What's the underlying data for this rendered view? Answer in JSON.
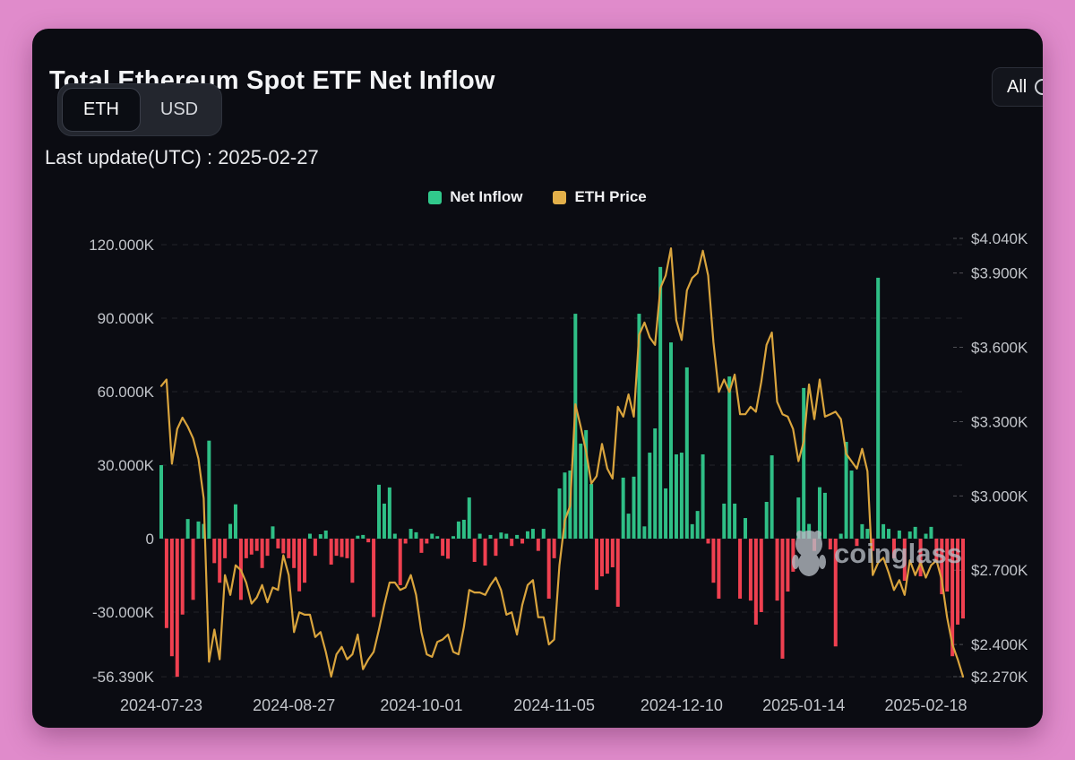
{
  "page": {
    "background": "#e08bcb",
    "card_background": "#0b0c12"
  },
  "header": {
    "title": "Total Ethereum Spot ETF Net Inflow",
    "toggle": {
      "options": [
        "ETH",
        "USD"
      ],
      "selected": "ETH"
    },
    "last_update": "Last update(UTC) : 2025-02-27",
    "range_button": "All"
  },
  "legend": [
    {
      "label": "Net Inflow",
      "color": "#31c98c"
    },
    {
      "label": "ETH Price",
      "color": "#e3b04a"
    }
  ],
  "watermark": "coinglass",
  "chart_data": {
    "type": "bar+line",
    "title": "Total Ethereum Spot ETF Net Inflow",
    "legend_position": "top-center",
    "grid": "dashed-horizontal",
    "colors": {
      "bar_positive": "#2fbf86",
      "bar_negative": "#ef4050",
      "line": "#d9a43d"
    },
    "left_axis": {
      "series": "Net Inflow (K ETH)",
      "ticks": [
        {
          "label": "120.000K",
          "value": 120
        },
        {
          "label": "90.000K",
          "value": 90
        },
        {
          "label": "60.000K",
          "value": 60
        },
        {
          "label": "30.000K",
          "value": 30
        },
        {
          "label": "0",
          "value": 0
        },
        {
          "label": "-30.000K",
          "value": -30
        },
        {
          "label": "-56.390K",
          "value": -56.39
        }
      ],
      "range": [
        -56.39,
        120
      ]
    },
    "right_axis": {
      "series": "ETH Price (USD)",
      "ticks": [
        {
          "label": "$4.040K",
          "value": 4040
        },
        {
          "label": "$3.900K",
          "value": 3900
        },
        {
          "label": "$3.600K",
          "value": 3600
        },
        {
          "label": "$3.300K",
          "value": 3300
        },
        {
          "label": "$3.000K",
          "value": 3000
        },
        {
          "label": "$2.700K",
          "value": 2700
        },
        {
          "label": "$2.400K",
          "value": 2400
        },
        {
          "label": "$2.270K",
          "value": 2270
        }
      ],
      "range": [
        2270,
        4040
      ]
    },
    "x_ticks": [
      {
        "label": "2024-07-23",
        "index": 0
      },
      {
        "label": "2024-08-27",
        "index": 25
      },
      {
        "label": "2024-10-01",
        "index": 49
      },
      {
        "label": "2024-11-05",
        "index": 74
      },
      {
        "label": "2024-12-10",
        "index": 98
      },
      {
        "label": "2025-01-14",
        "index": 121
      },
      {
        "label": "2025-02-18",
        "index": 144
      }
    ],
    "columns": [
      "date",
      "net_inflow_k_eth",
      "eth_price_usd"
    ],
    "bars": [
      [
        "2024-07-23",
        30.0,
        3444
      ],
      [
        "2024-07-24",
        -36.5,
        3470
      ],
      [
        "2024-07-25",
        -48.0,
        3130
      ],
      [
        "2024-07-26",
        -56.39,
        3270
      ],
      [
        "2024-07-29",
        -31.0,
        3316
      ],
      [
        "2024-07-30",
        8.0,
        3280
      ],
      [
        "2024-07-31",
        -25.0,
        3232
      ],
      [
        "2024-08-01",
        7.0,
        3150
      ],
      [
        "2024-08-02",
        6.0,
        2990
      ],
      [
        "2024-08-05",
        40.0,
        2330
      ],
      [
        "2024-08-06",
        -10.0,
        2460
      ],
      [
        "2024-08-07",
        -18.0,
        2340
      ],
      [
        "2024-08-08",
        -8.0,
        2680
      ],
      [
        "2024-08-09",
        6.0,
        2600
      ],
      [
        "2024-08-12",
        14.0,
        2720
      ],
      [
        "2024-08-13",
        -25.0,
        2700
      ],
      [
        "2024-08-14",
        -8.0,
        2650
      ],
      [
        "2024-08-15",
        -6.5,
        2565
      ],
      [
        "2024-08-16",
        -5.0,
        2590
      ],
      [
        "2024-08-19",
        -12.0,
        2640
      ],
      [
        "2024-08-20",
        -7.0,
        2570
      ],
      [
        "2024-08-21",
        5.0,
        2630
      ],
      [
        "2024-08-22",
        -4.0,
        2620
      ],
      [
        "2024-08-23",
        -6.0,
        2760
      ],
      [
        "2024-08-26",
        -8.0,
        2680
      ],
      [
        "2024-08-27",
        -12.0,
        2450
      ],
      [
        "2024-08-28",
        -21.5,
        2530
      ],
      [
        "2024-08-29",
        -18.0,
        2520
      ],
      [
        "2024-08-30",
        2.0,
        2520
      ],
      [
        "2024-09-03",
        -7.0,
        2430
      ],
      [
        "2024-09-04",
        1.8,
        2450
      ],
      [
        "2024-09-05",
        3.3,
        2370
      ],
      [
        "2024-09-06",
        -10.6,
        2270
      ],
      [
        "2024-09-09",
        -7.0,
        2360
      ],
      [
        "2024-09-10",
        -7.5,
        2390
      ],
      [
        "2024-09-11",
        -8.0,
        2340
      ],
      [
        "2024-09-12",
        -18.0,
        2360
      ],
      [
        "2024-09-13",
        1.2,
        2440
      ],
      [
        "2024-09-16",
        1.5,
        2300
      ],
      [
        "2024-09-17",
        -1.5,
        2340
      ],
      [
        "2024-09-18",
        -32.0,
        2370
      ],
      [
        "2024-09-19",
        22.0,
        2460
      ],
      [
        "2024-09-20",
        14.3,
        2560
      ],
      [
        "2024-09-23",
        20.9,
        2650
      ],
      [
        "2024-09-24",
        2.0,
        2650
      ],
      [
        "2024-09-25",
        -19.0,
        2620
      ],
      [
        "2024-09-26",
        -2.0,
        2630
      ],
      [
        "2024-09-27",
        4.0,
        2680
      ],
      [
        "2024-09-30",
        2.6,
        2600
      ],
      [
        "2024-10-01",
        -5.8,
        2450
      ],
      [
        "2024-10-02",
        -2.0,
        2360
      ],
      [
        "2024-10-03",
        2.0,
        2350
      ],
      [
        "2024-10-04",
        1.0,
        2410
      ],
      [
        "2024-10-07",
        -7.0,
        2420
      ],
      [
        "2024-10-08",
        -8.2,
        2440
      ],
      [
        "2024-10-09",
        1.0,
        2370
      ],
      [
        "2024-10-10",
        7.0,
        2360
      ],
      [
        "2024-10-11",
        7.7,
        2470
      ],
      [
        "2024-10-14",
        16.8,
        2620
      ],
      [
        "2024-10-15",
        -9.5,
        2610
      ],
      [
        "2024-10-16",
        2.0,
        2610
      ],
      [
        "2024-10-17",
        -11.0,
        2600
      ],
      [
        "2024-10-18",
        1.5,
        2640
      ],
      [
        "2024-10-21",
        -7.0,
        2670
      ],
      [
        "2024-10-22",
        2.5,
        2620
      ],
      [
        "2024-10-23",
        2.0,
        2520
      ],
      [
        "2024-10-24",
        -3.0,
        2530
      ],
      [
        "2024-10-25",
        1.5,
        2440
      ],
      [
        "2024-10-28",
        -2.0,
        2560
      ],
      [
        "2024-10-29",
        3.0,
        2640
      ],
      [
        "2024-10-30",
        4.0,
        2660
      ],
      [
        "2024-10-31",
        -5.0,
        2510
      ],
      [
        "2024-11-01",
        4.0,
        2510
      ],
      [
        "2024-11-04",
        -24.5,
        2400
      ],
      [
        "2024-11-05",
        -8.0,
        2420
      ],
      [
        "2024-11-06",
        20.5,
        2720
      ],
      [
        "2024-11-07",
        27.0,
        2900
      ],
      [
        "2024-11-08",
        27.8,
        2960
      ],
      [
        "2024-11-11",
        91.8,
        3370
      ],
      [
        "2024-11-12",
        38.8,
        3280
      ],
      [
        "2024-11-13",
        44.3,
        3180
      ],
      [
        "2024-11-14",
        22.3,
        3050
      ],
      [
        "2024-11-15",
        -20.9,
        3080
      ],
      [
        "2024-11-18",
        -15.4,
        3210
      ],
      [
        "2024-11-19",
        -14.3,
        3110
      ],
      [
        "2024-11-20",
        -11.7,
        3070
      ],
      [
        "2024-11-21",
        -27.8,
        3360
      ],
      [
        "2024-11-22",
        24.9,
        3320
      ],
      [
        "2024-11-25",
        10.2,
        3410
      ],
      [
        "2024-11-26",
        25.3,
        3320
      ],
      [
        "2024-11-27",
        91.8,
        3650
      ],
      [
        "2024-11-29",
        5.0,
        3700
      ],
      [
        "2024-12-02",
        35.1,
        3640
      ],
      [
        "2024-12-03",
        45.0,
        3610
      ],
      [
        "2024-12-04",
        110.9,
        3840
      ],
      [
        "2024-12-05",
        20.5,
        3890
      ],
      [
        "2024-12-06",
        80.1,
        4000
      ],
      [
        "2024-12-09",
        34.4,
        3710
      ],
      [
        "2024-12-10",
        35.1,
        3630
      ],
      [
        "2024-12-11",
        69.9,
        3830
      ],
      [
        "2024-12-12",
        5.9,
        3880
      ],
      [
        "2024-12-13",
        11.3,
        3900
      ],
      [
        "2024-12-16",
        34.4,
        3990
      ],
      [
        "2024-12-17",
        -2.0,
        3890
      ],
      [
        "2024-12-18",
        -18.0,
        3620
      ],
      [
        "2024-12-19",
        -24.5,
        3420
      ],
      [
        "2024-12-20",
        14.3,
        3470
      ],
      [
        "2024-12-23",
        66.2,
        3420
      ],
      [
        "2024-12-24",
        14.3,
        3490
      ],
      [
        "2024-12-26",
        -24.5,
        3330
      ],
      [
        "2024-12-27",
        8.4,
        3330
      ],
      [
        "2024-12-30",
        -25.3,
        3360
      ],
      [
        "2024-12-31",
        -35.1,
        3340
      ],
      [
        "2025-01-02",
        -30.0,
        3460
      ],
      [
        "2025-01-03",
        15.0,
        3610
      ],
      [
        "2025-01-06",
        34.0,
        3660
      ],
      [
        "2025-01-07",
        -25.3,
        3380
      ],
      [
        "2025-01-08",
        -49.0,
        3330
      ],
      [
        "2025-01-09",
        -21.6,
        3320
      ],
      [
        "2025-01-10",
        -13.5,
        3270
      ],
      [
        "2025-01-13",
        16.8,
        3140
      ],
      [
        "2025-01-14",
        61.5,
        3220
      ],
      [
        "2025-01-15",
        6.0,
        3450
      ],
      [
        "2025-01-16",
        -5.0,
        3310
      ],
      [
        "2025-01-17",
        21.0,
        3470
      ],
      [
        "2025-01-21",
        18.7,
        3320
      ],
      [
        "2025-01-22",
        -4.4,
        3330
      ],
      [
        "2025-01-23",
        -44.0,
        3340
      ],
      [
        "2025-01-24",
        2.0,
        3310
      ],
      [
        "2025-01-27",
        39.5,
        3170
      ],
      [
        "2025-01-28",
        27.8,
        3140
      ],
      [
        "2025-01-29",
        -3.0,
        3110
      ],
      [
        "2025-01-30",
        5.9,
        3190
      ],
      [
        "2025-01-31",
        4.0,
        3100
      ],
      [
        "2025-02-03",
        -5.0,
        2680
      ],
      [
        "2025-02-04",
        106.5,
        2730
      ],
      [
        "2025-02-05",
        5.9,
        2750
      ],
      [
        "2025-02-06",
        4.0,
        2690
      ],
      [
        "2025-02-07",
        -8.0,
        2620
      ],
      [
        "2025-02-10",
        3.3,
        2660
      ],
      [
        "2025-02-11",
        -17.2,
        2600
      ],
      [
        "2025-02-12",
        2.9,
        2740
      ],
      [
        "2025-02-13",
        4.8,
        2680
      ],
      [
        "2025-02-14",
        -15.4,
        2730
      ],
      [
        "2025-02-18",
        2.0,
        2670
      ],
      [
        "2025-02-19",
        4.8,
        2720
      ],
      [
        "2025-02-20",
        -9.5,
        2740
      ],
      [
        "2025-02-21",
        -22.7,
        2660
      ],
      [
        "2025-02-24",
        -21.6,
        2510
      ],
      [
        "2025-02-25",
        -48.0,
        2400
      ],
      [
        "2025-02-26",
        -35.1,
        2340
      ],
      [
        "2025-02-27",
        -32.6,
        2270
      ]
    ]
  }
}
